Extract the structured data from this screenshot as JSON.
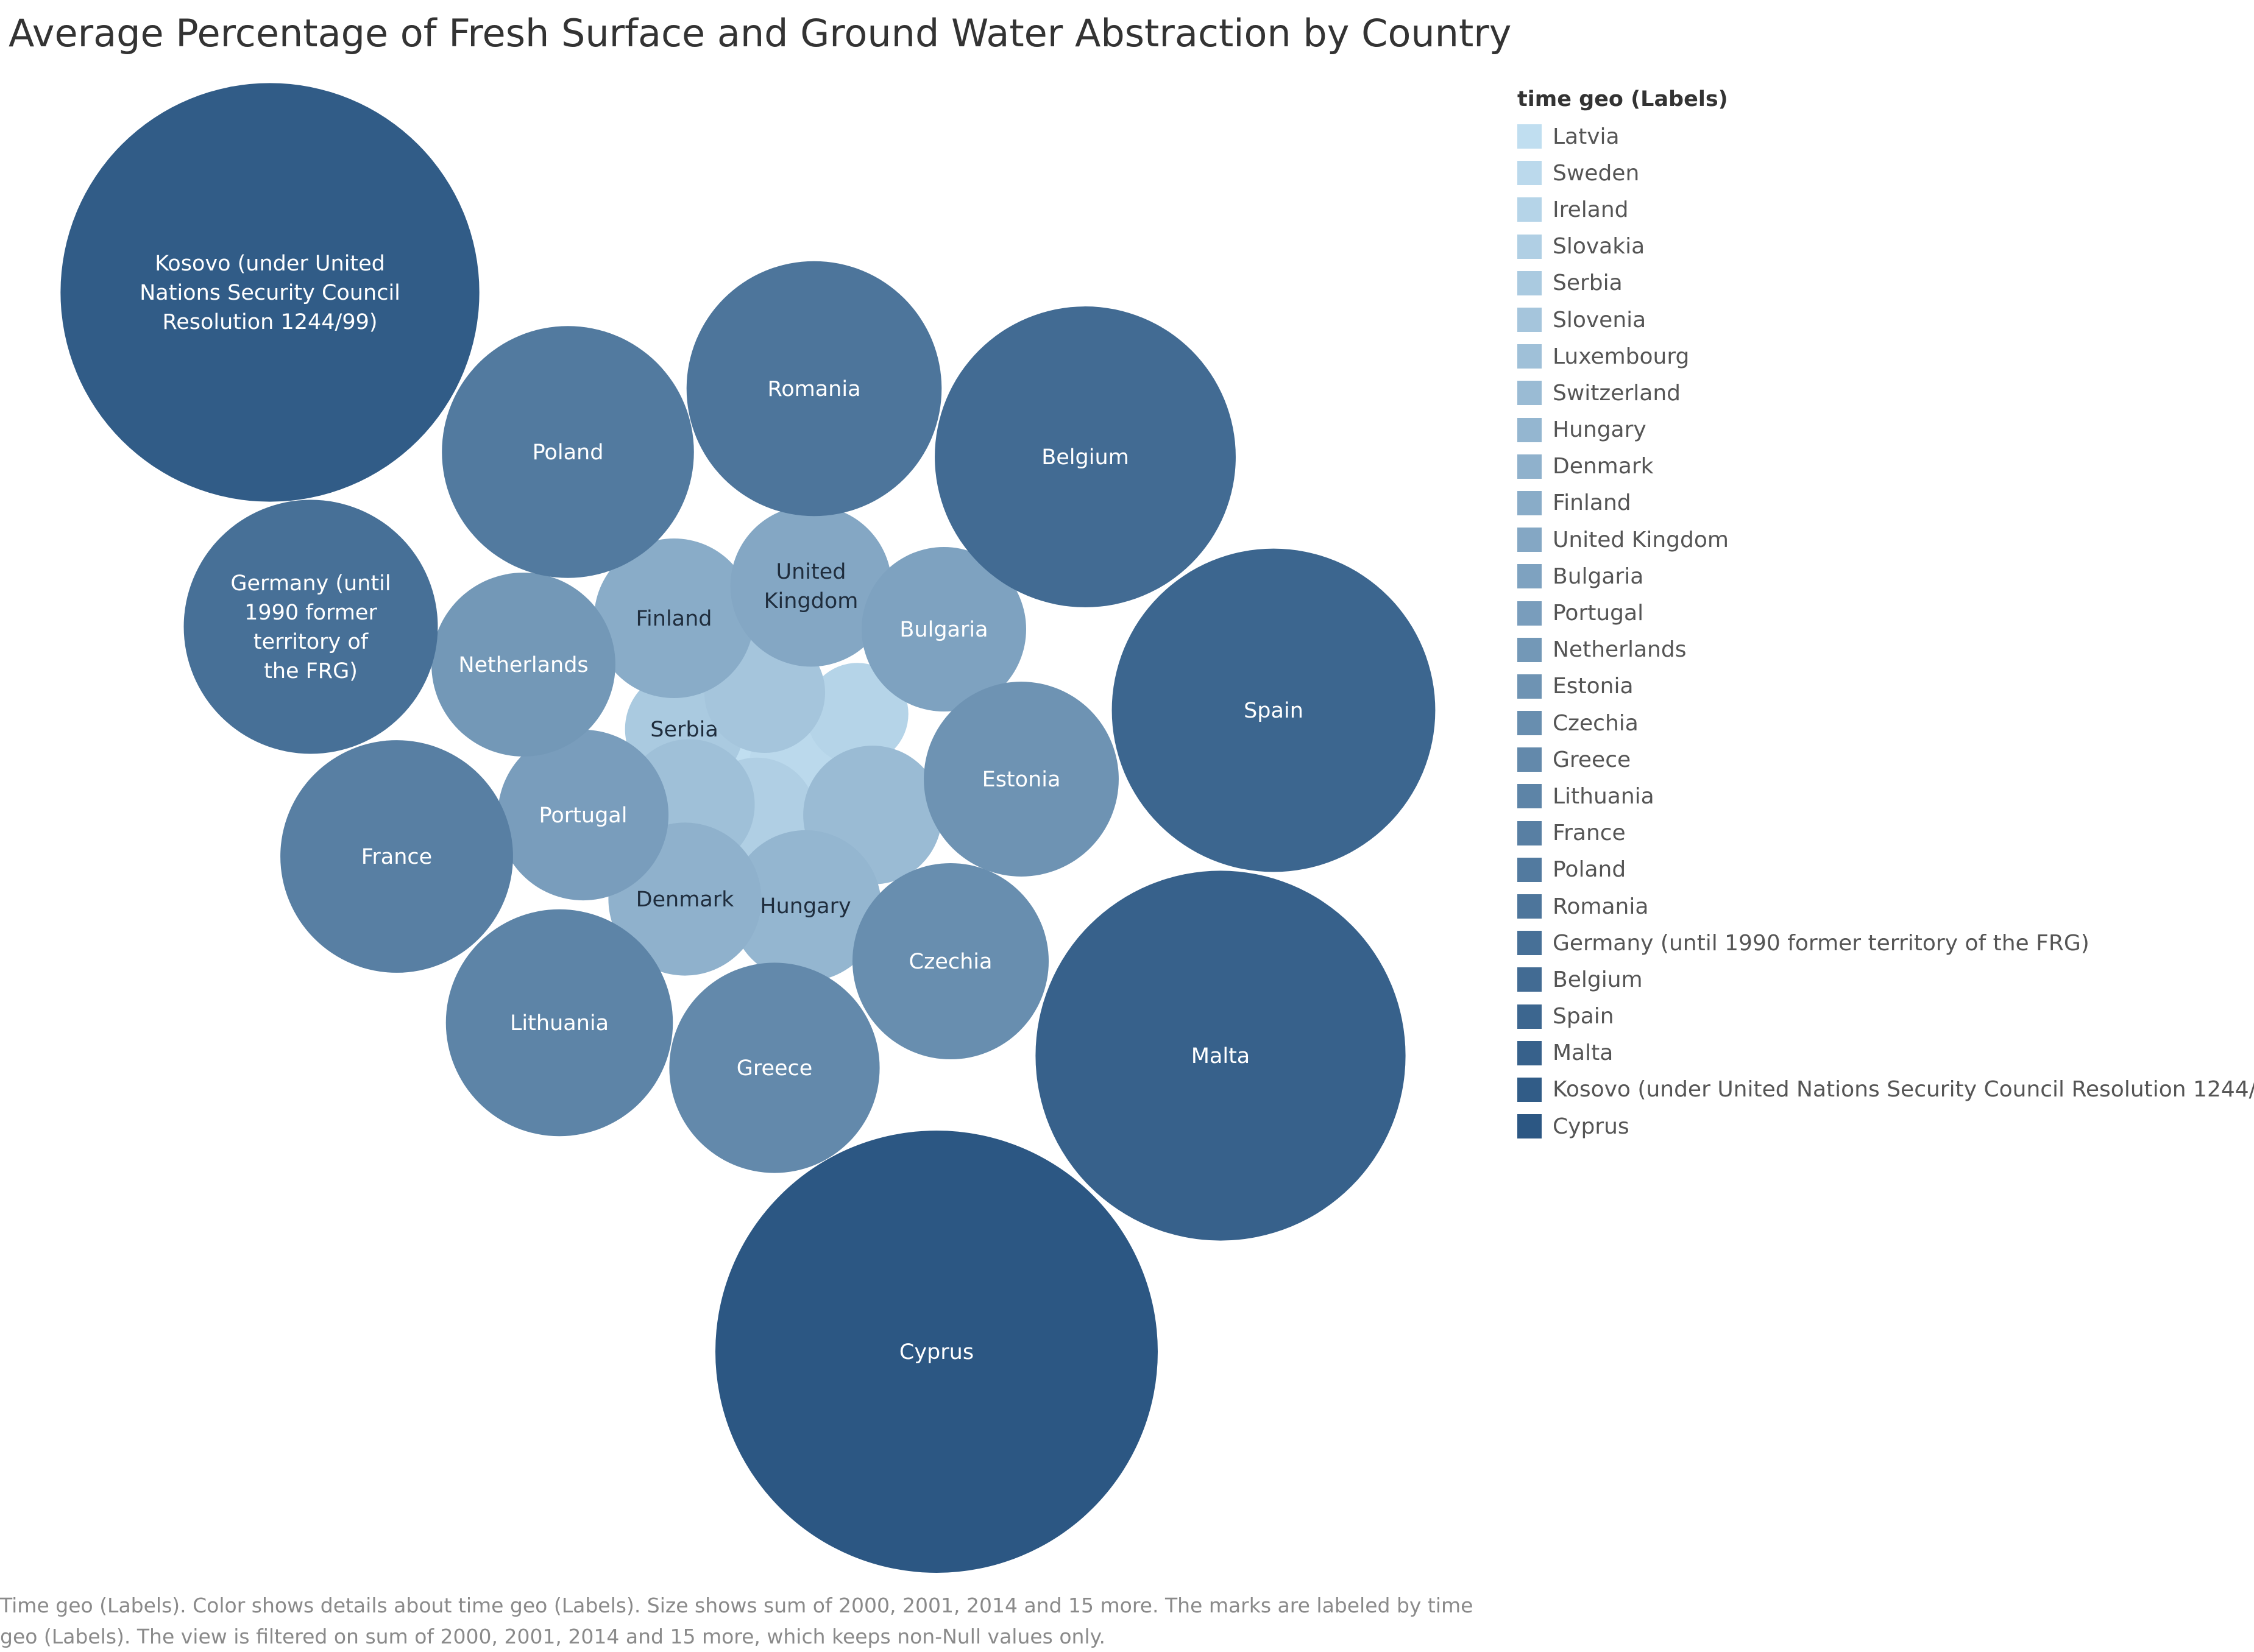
{
  "chart_data": {
    "type": "packed-bubble",
    "title": "Average Percentage of Fresh Surface and Ground Water Abstraction by Country",
    "legend_title": "time geo (Labels)",
    "legend_position": "right",
    "color_scale": {
      "light": "#c0def0",
      "dark": "#2c5783"
    },
    "caption": "Time geo (Labels).  Color shows details about time geo (Labels).  Size shows sum of 2000, 2001, 2014 and 15 more.  The marks are labeled by time geo (Labels). The view is filtered on sum of 2000, 2001, 2014 and 15 more, which keeps non-Null values only.",
    "categories": [
      "Latvia",
      "Sweden",
      "Ireland",
      "Slovakia",
      "Serbia",
      "Slovenia",
      "Luxembourg",
      "Switzerland",
      "Hungary",
      "Denmark",
      "Finland",
      "United Kingdom",
      "Bulgaria",
      "Portugal",
      "Netherlands",
      "Estonia",
      "Czechia",
      "Greece",
      "Lithuania",
      "France",
      "Poland",
      "Romania",
      "Germany (until 1990 former territory of the FRG)",
      "Belgium",
      "Spain",
      "Malta",
      "Kosovo (under United Nations Security Council Resolution 1244/99)",
      "Cyprus"
    ],
    "values": [
      9,
      15,
      20,
      27,
      27,
      28,
      33,
      37,
      44,
      45,
      49,
      50,
      52,
      56,
      65,
      73,
      74,
      85,
      99,
      104,
      122,
      125,
      124,
      174,
      201,
      263,
      337,
      376
    ],
    "bubble_labels": [
      "",
      "",
      "",
      "",
      "Serbia",
      "",
      "",
      "",
      "Hungary",
      "Denmark",
      "Finland",
      "United Kingdom",
      "Bulgaria",
      "Portugal",
      "Netherlands",
      "Estonia",
      "Czechia",
      "Greece",
      "Lithuania",
      "France",
      "Poland",
      "Romania",
      "Germany (until 1990 former territory of the FRG)",
      "Belgium",
      "Spain",
      "Malta",
      "Kosovo (under United Nations Security Council Resolution 1244/99)",
      "Cyprus"
    ]
  }
}
